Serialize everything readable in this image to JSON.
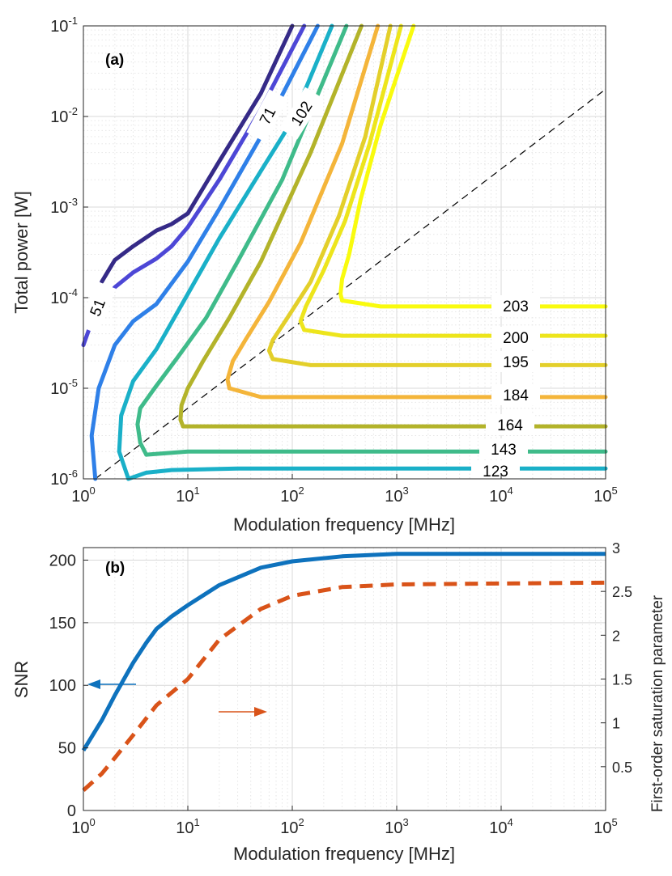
{
  "chart_data": [
    {
      "type": "line",
      "subtype": "contour",
      "panel_label": "(a)",
      "xlabel": "Modulation frequency [MHz]",
      "ylabel": "Total power [W]",
      "xscale": "log",
      "yscale": "log",
      "xlim": [
        1,
        100000
      ],
      "ylim": [
        1e-06,
        0.1
      ],
      "grid": true,
      "x_tick_labels": [
        {
          "base": "10",
          "exp": "0"
        },
        {
          "base": "10",
          "exp": "1"
        },
        {
          "base": "10",
          "exp": "2"
        },
        {
          "base": "10",
          "exp": "3"
        },
        {
          "base": "10",
          "exp": "4"
        },
        {
          "base": "10",
          "exp": "5"
        }
      ],
      "y_tick_labels": [
        {
          "base": "10",
          "exp": "-6"
        },
        {
          "base": "10",
          "exp": "-5"
        },
        {
          "base": "10",
          "exp": "-4"
        },
        {
          "base": "10",
          "exp": "-3"
        },
        {
          "base": "10",
          "exp": "-2"
        },
        {
          "base": "10",
          "exp": "-1"
        }
      ],
      "reference_line": {
        "style": "dashed",
        "color": "#000000",
        "points": [
          [
            1.3,
            1e-06
          ],
          [
            100000,
            0.02
          ]
        ]
      },
      "series": [
        {
          "name": "51",
          "label": "51",
          "color": "#352a87",
          "points": [
            [
              1.5,
              0.00015
            ],
            [
              2,
              0.00026
            ],
            [
              3,
              0.00037
            ],
            [
              5,
              0.00055
            ],
            [
              7,
              0.00065
            ],
            [
              10,
              0.00085
            ],
            [
              20,
              0.0032
            ],
            [
              50,
              0.018
            ],
            [
              100,
              0.1
            ]
          ]
        },
        {
          "name": "71",
          "label": "71",
          "color": "#4d47d6",
          "points": [
            [
              1,
              3e-05
            ],
            [
              1.3,
              7e-05
            ],
            [
              2,
              0.00013
            ],
            [
              3,
              0.00019
            ],
            [
              5,
              0.00027
            ],
            [
              7,
              0.00037
            ],
            [
              10,
              0.0006
            ],
            [
              20,
              0.002
            ],
            [
              50,
              0.012
            ],
            [
              130,
              0.1
            ]
          ]
        },
        {
          "name": "102",
          "label": "102",
          "color": "#2f80e8",
          "points": [
            [
              1.3,
              1e-06
            ],
            [
              1.2,
              3e-06
            ],
            [
              1.4,
              1e-05
            ],
            [
              2,
              3e-05
            ],
            [
              3,
              5.5e-05
            ],
            [
              5,
              8.5e-05
            ],
            [
              10,
              0.00025
            ],
            [
              20,
              0.00095
            ],
            [
              50,
              0.006
            ],
            [
              175,
              0.1
            ]
          ]
        },
        {
          "name": "123",
          "label": "123",
          "color": "#1ab0c8",
          "points": [
            [
              2.7,
              1e-06
            ],
            [
              2.2,
              2e-06
            ],
            [
              2.3,
              5e-06
            ],
            [
              3,
              1.2e-05
            ],
            [
              5,
              2.7e-05
            ],
            [
              10,
              0.00011
            ],
            [
              20,
              0.00045
            ],
            [
              50,
              0.0025
            ],
            [
              100,
              0.009
            ],
            [
              240,
              0.1
            ]
          ],
          "tail": [
            [
              2.7,
              1e-06
            ],
            [
              4,
              1.17e-06
            ],
            [
              7,
              1.25e-06
            ],
            [
              30,
              1.3e-06
            ],
            [
              1000,
              1.3e-06
            ],
            [
              100000,
              1.3e-06
            ]
          ]
        },
        {
          "name": "143",
          "label": "143",
          "color": "#3fbb8a",
          "points": [
            [
              4,
              1.85e-06
            ],
            [
              3.5,
              2.5e-06
            ],
            [
              3.3,
              4e-06
            ],
            [
              3.5,
              6e-06
            ],
            [
              4.8,
              1e-05
            ],
            [
              8,
              2.2e-05
            ],
            [
              15,
              6e-05
            ],
            [
              30,
              0.00025
            ],
            [
              80,
              0.002
            ],
            [
              330,
              0.1
            ]
          ],
          "tail": [
            [
              4,
              1.85e-06
            ],
            [
              10,
              2e-06
            ],
            [
              50,
              2e-06
            ],
            [
              100000,
              2e-06
            ]
          ]
        },
        {
          "name": "164",
          "label": "164",
          "color": "#b3b32a",
          "points": [
            [
              9,
              3.8e-06
            ],
            [
              8.5,
              4.5e-06
            ],
            [
              8.7,
              6.5e-06
            ],
            [
              10,
              1e-05
            ],
            [
              14,
              2e-05
            ],
            [
              25,
              6e-05
            ],
            [
              50,
              0.00025
            ],
            [
              150,
              0.004
            ],
            [
              460,
              0.1
            ]
          ],
          "tail": [
            [
              9,
              3.8e-06
            ],
            [
              20,
              3.8e-06
            ],
            [
              100000,
              3.8e-06
            ]
          ]
        },
        {
          "name": "184",
          "label": "184",
          "color": "#f4b53a",
          "points": [
            [
              25,
              1e-05
            ],
            [
              24,
              1.25e-05
            ],
            [
              27,
              2e-05
            ],
            [
              36,
              3.5e-05
            ],
            [
              60,
              9e-05
            ],
            [
              120,
              0.0004
            ],
            [
              300,
              0.005
            ],
            [
              660,
              0.1
            ]
          ],
          "tail": [
            [
              25,
              1e-05
            ],
            [
              50,
              8e-06
            ],
            [
              200,
              8e-06
            ],
            [
              100000,
              8e-06
            ]
          ]
        },
        {
          "name": "195",
          "label": "195",
          "color": "#e3cf2a",
          "points": [
            [
              65,
              2.1e-05
            ],
            [
              60,
              2.6e-05
            ],
            [
              65,
              3.4e-05
            ],
            [
              90,
              6e-05
            ],
            [
              150,
              0.00015
            ],
            [
              280,
              0.0008
            ],
            [
              500,
              0.006
            ],
            [
              870,
              0.1
            ]
          ],
          "tail": [
            [
              65,
              2.1e-05
            ],
            [
              150,
              1.8e-05
            ],
            [
              100000,
              1.8e-05
            ]
          ]
        },
        {
          "name": "200",
          "label": "200",
          "color": "#ede51c",
          "points": [
            [
              130,
              4.4e-05
            ],
            [
              120,
              5.5e-05
            ],
            [
              135,
              8e-05
            ],
            [
              200,
              0.0002
            ],
            [
              320,
              0.0007
            ],
            [
              550,
              0.005
            ],
            [
              1100,
              0.1
            ]
          ],
          "tail": [
            [
              130,
              4.4e-05
            ],
            [
              300,
              3.8e-05
            ],
            [
              100000,
              3.8e-05
            ]
          ]
        },
        {
          "name": "203",
          "label": "203",
          "color": "#f9fb0e",
          "points": [
            [
              300,
              9.3e-05
            ],
            [
              290,
              0.00011
            ],
            [
              300,
              0.00016
            ],
            [
              350,
              0.0003
            ],
            [
              450,
              0.0012
            ],
            [
              700,
              0.008
            ],
            [
              1450,
              0.1
            ]
          ],
          "tail": [
            [
              300,
              9.3e-05
            ],
            [
              700,
              8e-05
            ],
            [
              100000,
              8e-05
            ]
          ]
        }
      ]
    },
    {
      "type": "line",
      "panel_label": "(b)",
      "xlabel": "Modulation frequency [MHz]",
      "ylabel": "SNR",
      "ylabel_right": "First-order saturation parameter",
      "xscale": "log",
      "xlim": [
        1,
        100000
      ],
      "ylim": [
        0,
        210
      ],
      "ylim_right": [
        0,
        3
      ],
      "grid": true,
      "x_tick_labels": [
        {
          "base": "10",
          "exp": "0"
        },
        {
          "base": "10",
          "exp": "1"
        },
        {
          "base": "10",
          "exp": "2"
        },
        {
          "base": "10",
          "exp": "3"
        },
        {
          "base": "10",
          "exp": "4"
        },
        {
          "base": "10",
          "exp": "5"
        }
      ],
      "y_ticks": [
        "0",
        "50",
        "100",
        "150",
        "200"
      ],
      "y_right_ticks": [
        "0.5",
        "1",
        "1.5",
        "2",
        "2.5",
        "3"
      ],
      "series": [
        {
          "name": "SNR",
          "axis": "left",
          "style": "solid",
          "color": "#0e72bd",
          "points": [
            [
              1,
              48
            ],
            [
              1.5,
              72
            ],
            [
              2,
              92
            ],
            [
              3,
              118
            ],
            [
              4,
              134
            ],
            [
              5,
              145
            ],
            [
              7,
              155
            ],
            [
              10,
              164
            ],
            [
              20,
              180
            ],
            [
              50,
              194
            ],
            [
              100,
              199
            ],
            [
              300,
              203
            ],
            [
              1000,
              205
            ],
            [
              100000,
              205
            ]
          ]
        },
        {
          "name": "First-order saturation parameter",
          "axis": "right",
          "style": "dashed",
          "color": "#d95319",
          "points": [
            [
              1,
              0.23
            ],
            [
              1.5,
              0.42
            ],
            [
              2,
              0.6
            ],
            [
              3,
              0.86
            ],
            [
              5,
              1.2
            ],
            [
              10,
              1.5
            ],
            [
              20,
              1.95
            ],
            [
              50,
              2.3
            ],
            [
              100,
              2.45
            ],
            [
              300,
              2.55
            ],
            [
              1000,
              2.58
            ],
            [
              100000,
              2.6
            ]
          ]
        }
      ],
      "annotations": [
        {
          "type": "arrow",
          "direction": "left",
          "points_to": "SNR",
          "color": "#0e72bd"
        },
        {
          "type": "arrow",
          "direction": "right",
          "points_to": "First-order saturation parameter",
          "color": "#d95319"
        }
      ]
    }
  ]
}
